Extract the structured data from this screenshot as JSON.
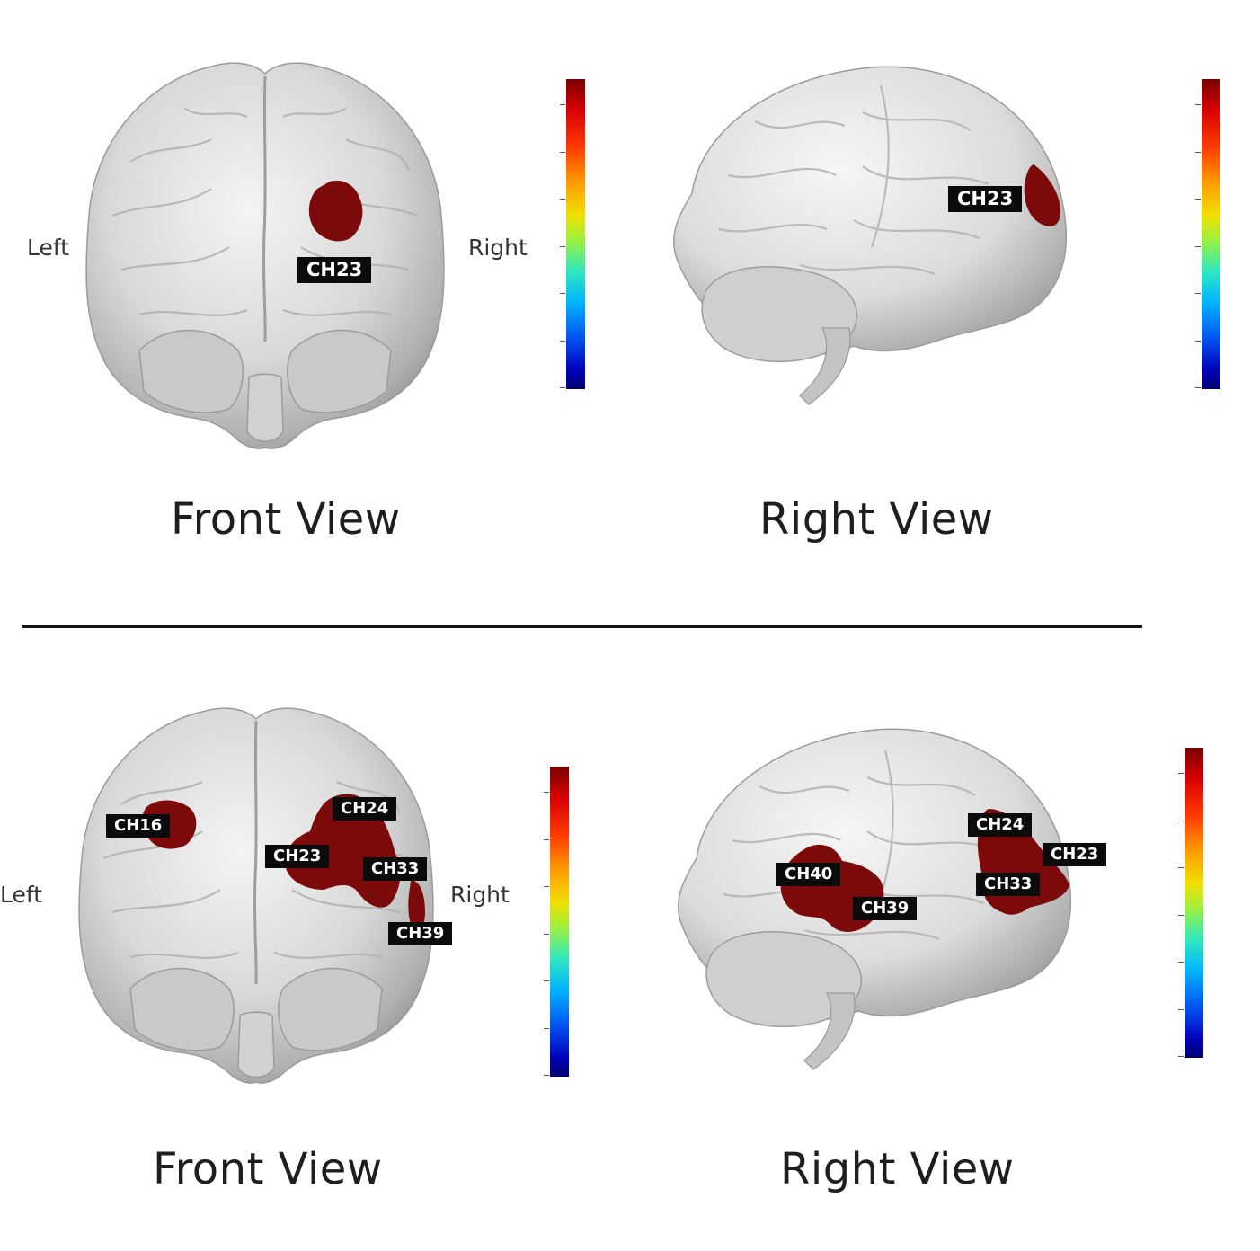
{
  "panels": [
    {
      "front": {
        "left_label": "Left",
        "right_label": "Right",
        "channels": [
          "CH23"
        ],
        "title": "Front View"
      },
      "right": {
        "channels": [
          "CH23"
        ],
        "title": "Right View"
      }
    },
    {
      "front": {
        "left_label": "Left",
        "right_label": "Right",
        "channels": [
          "CH16",
          "CH24",
          "CH23",
          "CH33",
          "CH39"
        ],
        "title": "Front View"
      },
      "right": {
        "channels": [
          "CH24",
          "CH23",
          "CH40",
          "CH33",
          "CH39"
        ],
        "title": "Right View"
      }
    }
  ],
  "colors": {
    "activation": "#7d0a0a",
    "label_bg": "#0b0b0b",
    "brain_light": "#f2f2f2",
    "brain_dark": "#8a8a8a"
  }
}
